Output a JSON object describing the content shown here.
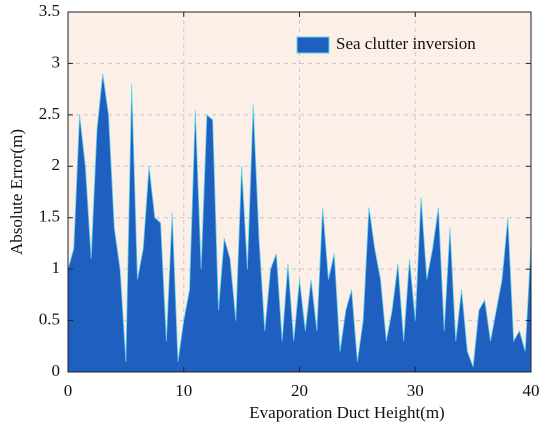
{
  "chart_data": {
    "type": "area",
    "xlabel": "Evaporation Duct Height(m)",
    "ylabel": "Absolute Error(m)",
    "x": [
      0,
      0.5,
      1,
      1.5,
      2,
      2.5,
      3,
      3.5,
      4,
      4.5,
      5,
      5.5,
      6,
      6.5,
      7,
      7.5,
      8,
      8.5,
      9,
      9.5,
      10,
      10.5,
      11,
      11.5,
      12,
      12.5,
      13,
      13.5,
      14,
      14.5,
      15,
      15.5,
      16,
      16.5,
      17,
      17.5,
      18,
      18.5,
      19,
      19.5,
      20,
      20.5,
      21,
      21.5,
      22,
      22.5,
      23,
      23.5,
      24,
      24.5,
      25,
      25.5,
      26,
      26.5,
      27,
      27.5,
      28,
      28.5,
      29,
      29.5,
      30,
      30.5,
      31,
      31.5,
      32,
      32.5,
      33,
      33.5,
      34,
      34.5,
      35,
      35.5,
      36,
      36.5,
      37,
      37.5,
      38,
      38.5,
      39,
      39.5,
      40
    ],
    "series": [
      {
        "name": "Sea clutter inversion",
        "color": "#1f5fc0",
        "values": [
          1.0,
          1.2,
          2.5,
          2.0,
          1.1,
          2.35,
          2.9,
          2.5,
          1.4,
          1.0,
          0.1,
          2.8,
          0.9,
          1.2,
          2.0,
          1.5,
          1.45,
          0.3,
          1.55,
          0.1,
          0.5,
          0.8,
          2.55,
          1.0,
          2.5,
          2.45,
          0.6,
          1.3,
          1.1,
          0.5,
          2.0,
          1.0,
          2.6,
          1.3,
          0.4,
          1.0,
          1.15,
          0.3,
          1.05,
          0.3,
          0.9,
          0.4,
          0.9,
          0.4,
          1.6,
          0.9,
          1.15,
          0.2,
          0.6,
          0.8,
          0.1,
          0.5,
          1.6,
          1.2,
          0.9,
          0.3,
          0.6,
          1.05,
          0.3,
          1.1,
          0.5,
          1.7,
          0.9,
          1.2,
          1.6,
          0.4,
          1.4,
          0.3,
          0.8,
          0.2,
          0.05,
          0.6,
          0.7,
          0.3,
          0.6,
          0.9,
          1.5,
          0.3,
          0.4,
          0.2,
          1.25
        ]
      }
    ],
    "xlim": [
      0,
      40
    ],
    "xticks": [
      0,
      10,
      20,
      30,
      40
    ],
    "ylim": [
      0,
      3.5
    ],
    "yticks": [
      0,
      0.5,
      1,
      1.5,
      2,
      2.5,
      3,
      3.5
    ],
    "grid": true,
    "legend": "upper right",
    "background": "#fcefe8"
  }
}
